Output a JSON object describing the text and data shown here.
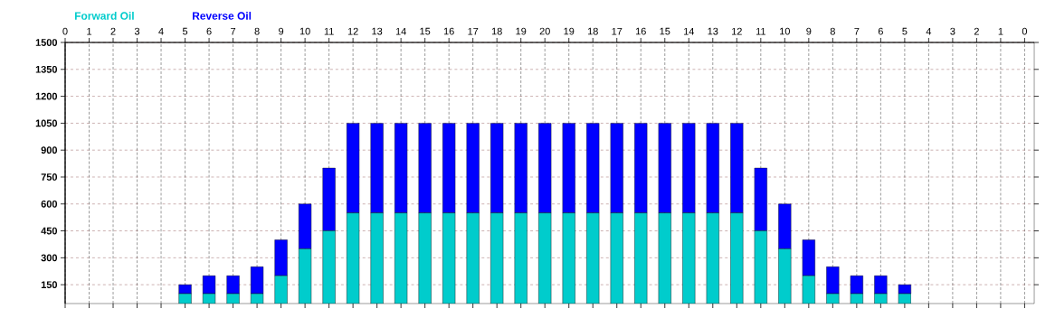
{
  "chart_data": {
    "type": "bar",
    "stacked": true,
    "categories": [
      "0",
      "1",
      "2",
      "3",
      "4",
      "5",
      "6",
      "7",
      "8",
      "9",
      "10",
      "11",
      "12",
      "13",
      "14",
      "15",
      "16",
      "17",
      "18",
      "19",
      "20",
      "19",
      "18",
      "17",
      "16",
      "15",
      "14",
      "13",
      "12",
      "11",
      "10",
      "9",
      "8",
      "7",
      "6",
      "5",
      "4",
      "3",
      "2",
      "1",
      "0"
    ],
    "series": [
      {
        "name": "Forward Oil",
        "color": "#00cccc",
        "values": [
          null,
          null,
          null,
          null,
          null,
          100,
          100,
          100,
          100,
          200,
          350,
          450,
          550,
          550,
          550,
          550,
          550,
          550,
          550,
          550,
          550,
          550,
          550,
          550,
          550,
          550,
          550,
          550,
          550,
          450,
          350,
          200,
          100,
          100,
          100,
          100,
          null,
          null,
          null,
          null,
          null
        ]
      },
      {
        "name": "Reverse Oil",
        "color": "#0000ff",
        "values": [
          null,
          null,
          null,
          null,
          null,
          50,
          100,
          100,
          150,
          200,
          250,
          350,
          500,
          500,
          500,
          500,
          500,
          500,
          500,
          500,
          500,
          500,
          500,
          500,
          500,
          500,
          500,
          500,
          500,
          350,
          250,
          200,
          150,
          100,
          100,
          50,
          null,
          null,
          null,
          null,
          null
        ]
      }
    ],
    "ylim": [
      45,
      1500
    ],
    "yticks": [
      150,
      300,
      450,
      600,
      750,
      900,
      1050,
      1200,
      1350,
      1500
    ],
    "grid": true,
    "legend": "top left"
  }
}
